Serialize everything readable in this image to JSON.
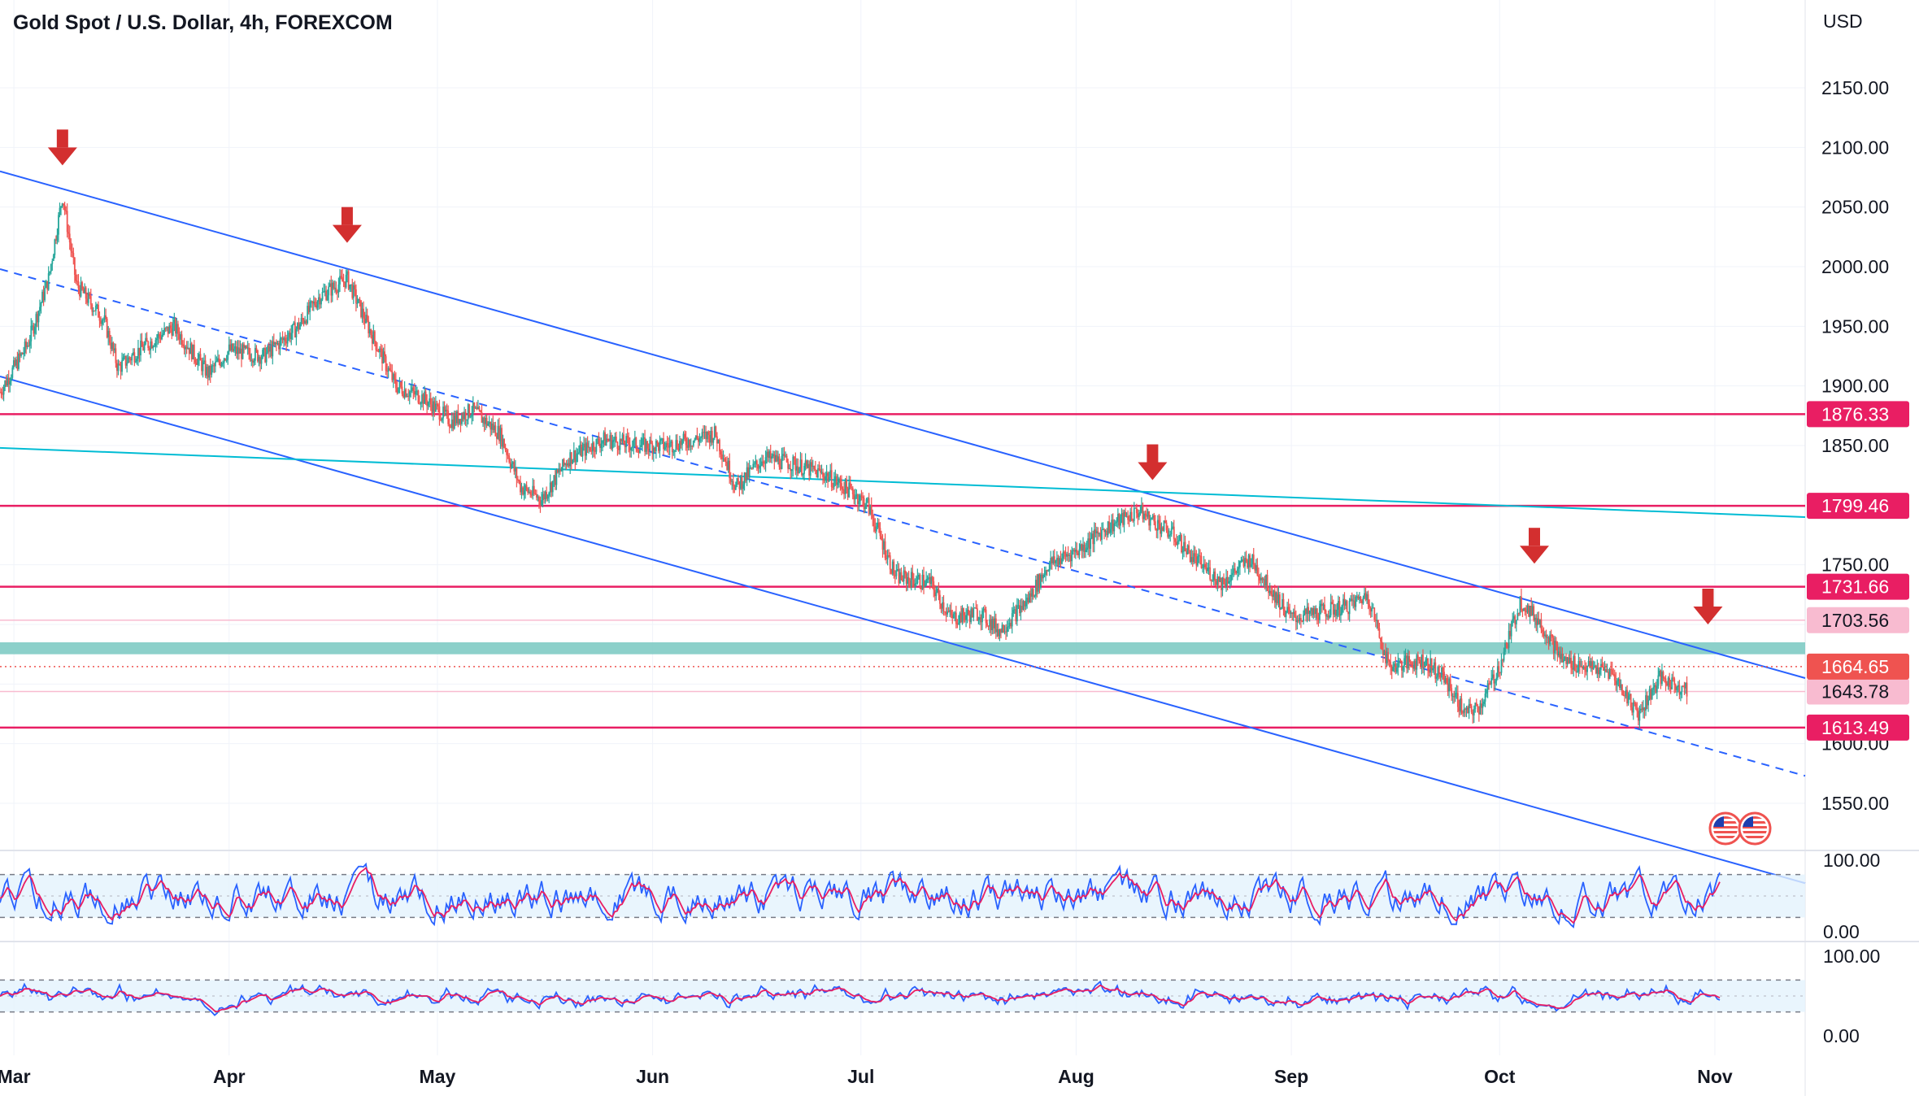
{
  "header": {
    "title": "Gold Spot / U.S. Dollar, 4h, FOREXCOM"
  },
  "price_axis": {
    "currency": "USD"
  },
  "colors": {
    "up": "#26a69a",
    "down": "#ef5350",
    "channel": "#2962ff",
    "trend": "#00bcd4",
    "level": "#e91e63",
    "zone": "#80cbc4",
    "arrow": "#d32f2f",
    "k_line": "#2962ff",
    "d_line": "#e91e63",
    "band": "#e3f2fd"
  },
  "chart_data": [
    {
      "type": "candlestick",
      "title": "Gold Spot / U.S. Dollar, 4h, FOREXCOM",
      "ylim": [
        1500,
        2200
      ],
      "yticks": [
        1550,
        1600,
        1650,
        1700,
        1750,
        1800,
        1850,
        1900,
        1950,
        2000,
        2050,
        2100,
        2150
      ],
      "ytick_labels": [
        "1550.00",
        "1600.00",
        "1650.00",
        "1700.00",
        "1750.00",
        "1800.00",
        "1850.00",
        "1900.00",
        "1950.00",
        "2000.00",
        "2050.00",
        "2100.00",
        "2150.00"
      ],
      "x_labels": [
        "Mar",
        "Apr",
        "May",
        "Jun",
        "Jul",
        "Aug",
        "Sep",
        "Oct",
        "Nov"
      ],
      "x_label_dates": [
        "2022-03-01",
        "2022-04-01",
        "2022-05-01",
        "2022-06-01",
        "2022-07-01",
        "2022-08-01",
        "2022-09-01",
        "2022-10-01",
        "2022-11-01"
      ],
      "x_range": [
        "2022-02-27",
        "2022-11-14"
      ],
      "price_path": [
        [
          "2022-02-27",
          1895
        ],
        [
          "2022-03-03",
          1935
        ],
        [
          "2022-03-06",
          1990
        ],
        [
          "2022-03-08",
          2060
        ],
        [
          "2022-03-10",
          1985
        ],
        [
          "2022-03-14",
          1955
        ],
        [
          "2022-03-16",
          1915
        ],
        [
          "2022-03-19",
          1930
        ],
        [
          "2022-03-24",
          1950
        ],
        [
          "2022-03-29",
          1910
        ],
        [
          "2022-04-01",
          1930
        ],
        [
          "2022-04-06",
          1925
        ],
        [
          "2022-04-11",
          1950
        ],
        [
          "2022-04-14",
          1975
        ],
        [
          "2022-04-18",
          1990
        ],
        [
          "2022-04-21",
          1950
        ],
        [
          "2022-04-25",
          1900
        ],
        [
          "2022-04-29",
          1890
        ],
        [
          "2022-05-03",
          1870
        ],
        [
          "2022-05-06",
          1880
        ],
        [
          "2022-05-10",
          1860
        ],
        [
          "2022-05-13",
          1815
        ],
        [
          "2022-05-16",
          1805
        ],
        [
          "2022-05-20",
          1840
        ],
        [
          "2022-05-25",
          1855
        ],
        [
          "2022-05-30",
          1850
        ],
        [
          "2022-06-03",
          1850
        ],
        [
          "2022-06-07",
          1855
        ],
        [
          "2022-06-10",
          1860
        ],
        [
          "2022-06-13",
          1815
        ],
        [
          "2022-06-17",
          1840
        ],
        [
          "2022-06-21",
          1835
        ],
        [
          "2022-06-26",
          1825
        ],
        [
          "2022-06-30",
          1810
        ],
        [
          "2022-07-02",
          1800
        ],
        [
          "2022-07-06",
          1740
        ],
        [
          "2022-07-11",
          1735
        ],
        [
          "2022-07-14",
          1705
        ],
        [
          "2022-07-18",
          1710
        ],
        [
          "2022-07-21",
          1695
        ],
        [
          "2022-07-25",
          1720
        ],
        [
          "2022-07-28",
          1750
        ],
        [
          "2022-08-02",
          1765
        ],
        [
          "2022-08-05",
          1780
        ],
        [
          "2022-08-10",
          1795
        ],
        [
          "2022-08-15",
          1775
        ],
        [
          "2022-08-18",
          1755
        ],
        [
          "2022-08-22",
          1735
        ],
        [
          "2022-08-26",
          1755
        ],
        [
          "2022-08-29",
          1730
        ],
        [
          "2022-09-01",
          1705
        ],
        [
          "2022-09-05",
          1710
        ],
        [
          "2022-09-09",
          1715
        ],
        [
          "2022-09-12",
          1725
        ],
        [
          "2022-09-15",
          1665
        ],
        [
          "2022-09-20",
          1670
        ],
        [
          "2022-09-23",
          1655
        ],
        [
          "2022-09-26",
          1625
        ],
        [
          "2022-09-28",
          1630
        ],
        [
          "2022-10-01",
          1665
        ],
        [
          "2022-10-04",
          1720
        ],
        [
          "2022-10-07",
          1700
        ],
        [
          "2022-10-10",
          1670
        ],
        [
          "2022-10-13",
          1665
        ],
        [
          "2022-10-17",
          1660
        ],
        [
          "2022-10-21",
          1625
        ],
        [
          "2022-10-24",
          1655
        ],
        [
          "2022-10-28",
          1645
        ]
      ],
      "horizontal_levels": [
        {
          "value": 1876.33,
          "label": "1876.33",
          "style": "solid"
        },
        {
          "value": 1799.46,
          "label": "1799.46",
          "style": "solid"
        },
        {
          "value": 1731.66,
          "label": "1731.66",
          "style": "solid"
        },
        {
          "value": 1703.56,
          "label": "1703.56",
          "style": "light"
        },
        {
          "value": 1643.78,
          "label": "1643.78",
          "style": "light"
        },
        {
          "value": 1613.49,
          "label": "1613.49",
          "style": "solid"
        }
      ],
      "last_price": {
        "value": 1664.65,
        "label": "1664.65"
      },
      "support_zone": [
        1675,
        1685
      ],
      "trendlines": [
        {
          "name": "channel-upper",
          "kind": "solid",
          "from": [
            "2022-02-27",
            2080
          ],
          "to": [
            "2022-11-14",
            1655
          ]
        },
        {
          "name": "channel-middle",
          "kind": "dashed",
          "from": [
            "2022-02-27",
            1998
          ],
          "to": [
            "2022-11-14",
            1573
          ]
        },
        {
          "name": "channel-lower",
          "kind": "solid",
          "from": [
            "2022-02-27",
            1908
          ],
          "to": [
            "2022-11-14",
            1483
          ]
        },
        {
          "name": "long-trend",
          "kind": "solid",
          "from": [
            "2022-02-27",
            1848
          ],
          "to": [
            "2022-11-14",
            1790
          ]
        }
      ],
      "arrows": [
        {
          "date": "2022-03-08",
          "value": 2100
        },
        {
          "date": "2022-04-18",
          "value": 2035
        },
        {
          "date": "2022-08-12",
          "value": 1836
        },
        {
          "date": "2022-10-06",
          "value": 1766
        },
        {
          "date": "2022-10-31",
          "value": 1715
        }
      ]
    },
    {
      "type": "line",
      "name": "oscillator-1",
      "ylim": [
        0,
        100
      ],
      "ytick_labels": [
        "100.00",
        "0.00"
      ],
      "band": [
        20,
        80
      ],
      "style": "fast"
    },
    {
      "type": "line",
      "name": "oscillator-2",
      "ylim": [
        0,
        100
      ],
      "ytick_labels": [
        "100.00",
        "0.00"
      ],
      "band": [
        30,
        70
      ],
      "style": "slow"
    }
  ]
}
